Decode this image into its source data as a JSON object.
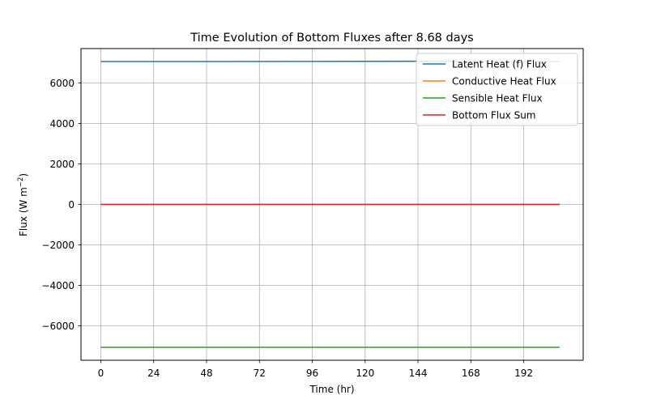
{
  "chart_data": {
    "type": "line",
    "title": "Time Evolution of Bottom Fluxes after 8.68 days",
    "xlabel": "Time (hr)",
    "ylabel_prefix": "Flux (W m",
    "ylabel_sup": "−2",
    "ylabel_suffix": ")",
    "xlim": [
      -9,
      219
    ],
    "ylim": [
      -7700,
      7700
    ],
    "x_ticks": [
      0,
      24,
      48,
      72,
      96,
      120,
      144,
      168,
      192
    ],
    "x_tick_labels": [
      "0",
      "24",
      "48",
      "72",
      "96",
      "120",
      "144",
      "168",
      "192"
    ],
    "y_ticks": [
      -6000,
      -4000,
      -2000,
      0,
      2000,
      4000,
      6000
    ],
    "y_tick_labels": [
      "−6000",
      "−4000",
      "−2000",
      "0",
      "2000",
      "4000",
      "6000"
    ],
    "grid": true,
    "legend_position": "top-right",
    "series": [
      {
        "name": "Latent Heat (f) Flux",
        "color": "#1f77b4",
        "x": [
          0,
          48,
          96,
          144,
          168,
          208.3
        ],
        "y": [
          7060,
          7060,
          7065,
          7075,
          7060,
          7060
        ]
      },
      {
        "name": "Conductive Heat Flux",
        "color": "#ff7f0e",
        "x": [
          0,
          208.3
        ],
        "y": [
          0,
          0
        ]
      },
      {
        "name": "Sensible Heat Flux",
        "color": "#2ca02c",
        "x": [
          0,
          208.3
        ],
        "y": [
          -7060,
          -7060
        ]
      },
      {
        "name": "Bottom Flux Sum",
        "color": "#d62728",
        "x": [
          0,
          208.3
        ],
        "y": [
          0,
          0
        ]
      }
    ]
  }
}
